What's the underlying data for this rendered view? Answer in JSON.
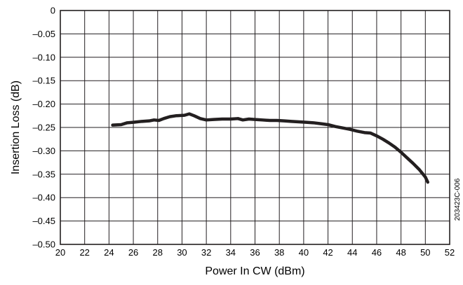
{
  "chart_data": {
    "type": "line",
    "title": "",
    "xlabel": "Power In CW (dBm)",
    "ylabel": "Insertion Loss (dB)",
    "xlim": [
      20,
      52
    ],
    "ylim": [
      -0.5,
      0
    ],
    "x_ticks": [
      20,
      22,
      24,
      26,
      28,
      30,
      32,
      34,
      36,
      38,
      40,
      42,
      44,
      46,
      48,
      50,
      52
    ],
    "y_ticks": [
      0,
      -0.05,
      -0.1,
      -0.15,
      -0.2,
      -0.25,
      -0.3,
      -0.35,
      -0.4,
      -0.45,
      -0.5
    ],
    "x_tick_labels": [
      "20",
      "22",
      "24",
      "26",
      "28",
      "30",
      "32",
      "34",
      "36",
      "38",
      "40",
      "42",
      "44",
      "46",
      "48",
      "50",
      "52"
    ],
    "y_tick_labels": [
      "0",
      "–0.05",
      "–0.10",
      "–0.15",
      "–0.20",
      "–0.25",
      "–0.30",
      "–0.35",
      "–0.40",
      "–0.45",
      "–0.50"
    ],
    "grid": true,
    "series": [
      {
        "color": "#231f20",
        "x": [
          24.3,
          25.0,
          25.5,
          26.0,
          26.7,
          27.3,
          27.7,
          28.1,
          28.5,
          29.0,
          29.5,
          30.2,
          30.6,
          31.0,
          31.5,
          32.0,
          32.6,
          33.3,
          34.0,
          34.6,
          35.0,
          35.5,
          36.0,
          36.6,
          37.2,
          37.8,
          38.4,
          39.0,
          39.6,
          40.2,
          40.8,
          41.4,
          42.0,
          42.6,
          43.2,
          43.8,
          44.4,
          45.0,
          45.5,
          46.0,
          46.5,
          47.0,
          47.5,
          48.0,
          48.5,
          49.0,
          49.5,
          50.0,
          50.2
        ],
        "y": [
          -0.245,
          -0.244,
          -0.24,
          -0.239,
          -0.237,
          -0.236,
          -0.234,
          -0.235,
          -0.231,
          -0.227,
          -0.225,
          -0.224,
          -0.221,
          -0.225,
          -0.231,
          -0.234,
          -0.233,
          -0.232,
          -0.232,
          -0.231,
          -0.234,
          -0.232,
          -0.233,
          -0.234,
          -0.235,
          -0.235,
          -0.236,
          -0.237,
          -0.238,
          -0.239,
          -0.24,
          -0.242,
          -0.244,
          -0.248,
          -0.251,
          -0.254,
          -0.258,
          -0.261,
          -0.262,
          -0.268,
          -0.275,
          -0.283,
          -0.292,
          -0.303,
          -0.315,
          -0.327,
          -0.34,
          -0.356,
          -0.367
        ]
      }
    ],
    "side_note": "203423C-006"
  }
}
